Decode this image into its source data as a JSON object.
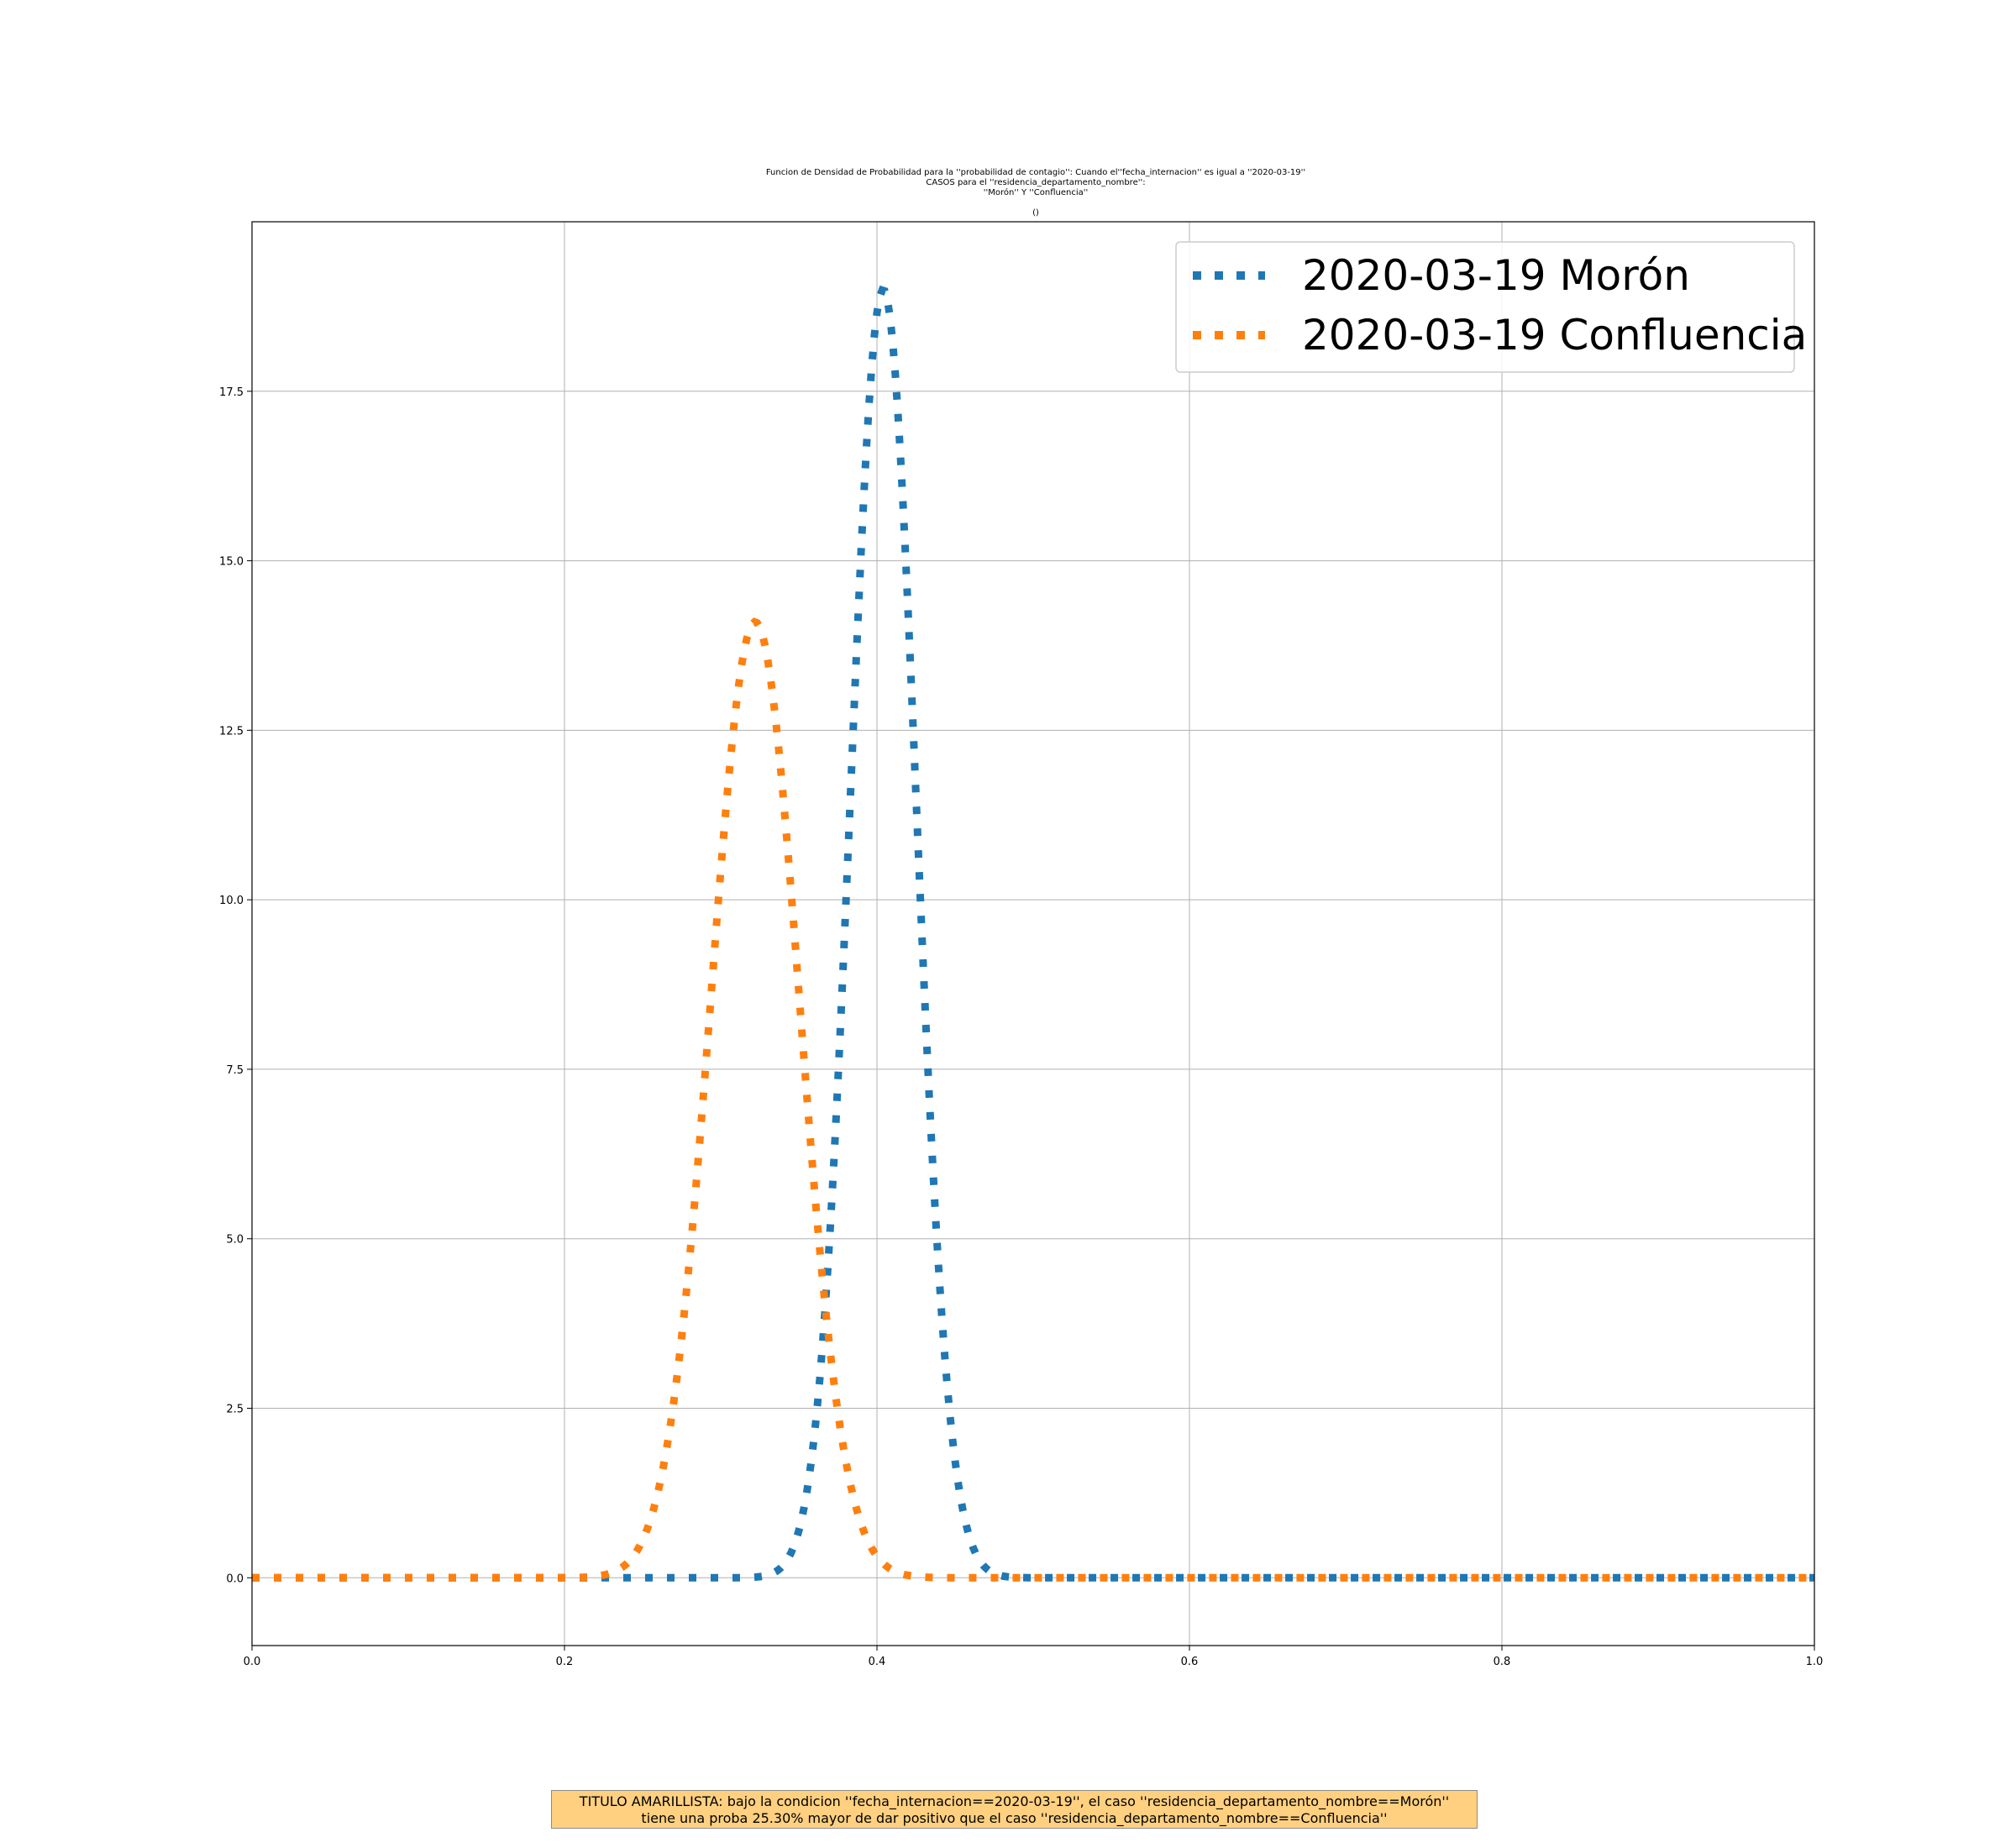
{
  "chart_data": {
    "type": "line",
    "title_lines": [
      "Funcion de Densidad de Probabilidad para la ''probabilidad de contagio'': Cuando el''fecha_internacion'' es igual a ''2020-03-19''",
      "CASOS para  el ''residencia_departamento_nombre'':",
      "''Morón'' Y ''Confluencia''"
    ],
    "subtitle": "()",
    "xlim": [
      0,
      1
    ],
    "ylim": [
      -1,
      20
    ],
    "xticks": [
      0.0,
      0.2,
      0.4,
      0.6,
      0.8,
      1.0
    ],
    "xtick_labels": [
      "0.0",
      "0.2",
      "0.4",
      "0.6",
      "0.8",
      "1.0"
    ],
    "yticks": [
      0.0,
      2.5,
      5.0,
      7.5,
      10.0,
      12.5,
      15.0,
      17.5
    ],
    "ytick_labels": [
      "0.0",
      "2.5",
      "5.0",
      "7.5",
      "10.0",
      "12.5",
      "15.0",
      "17.5"
    ],
    "grid": true,
    "legend_position": "top-right",
    "series": [
      {
        "name": "2020-03-19 Morón",
        "color": "#1f77b4",
        "linestyle": "dotted",
        "peak_x": 0.404,
        "peak_y": 19.0,
        "sigma": 0.021
      },
      {
        "name": "2020-03-19 Confluencia",
        "color": "#ff7f0e",
        "linestyle": "dotted",
        "peak_x": 0.322,
        "peak_y": 14.1,
        "sigma": 0.0283
      }
    ]
  },
  "caption": {
    "line1": "TITULO AMARILLISTA: bajo la condicion ''fecha_internacion==2020-03-19'', el caso ''residencia_departamento_nombre==Morón''",
    "line2": "tiene una proba 25.30% mayor de dar positivo que el caso ''residencia_departamento_nombre==Confluencia''"
  }
}
